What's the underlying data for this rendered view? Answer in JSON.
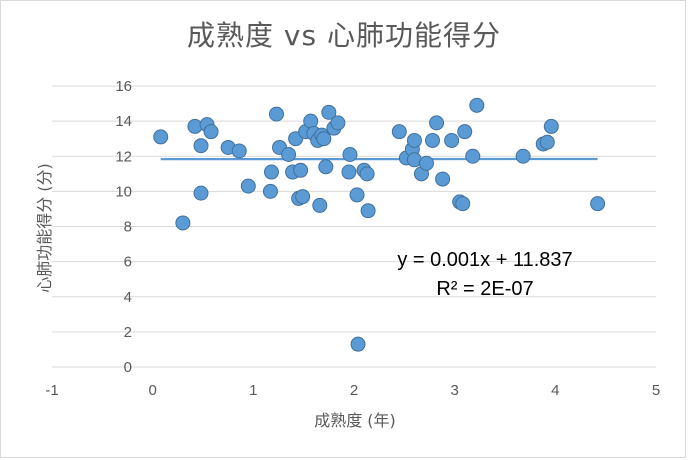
{
  "chart_data": {
    "type": "scatter",
    "title": "成熟度 vs 心肺功能得分",
    "xlabel": "成熟度 (年)",
    "ylabel": "心肺功能得分 (分)",
    "xlim": [
      -1,
      5
    ],
    "ylim": [
      0,
      16
    ],
    "xticks": [
      -1,
      0,
      1,
      2,
      3,
      4,
      5
    ],
    "yticks": [
      0,
      2,
      4,
      6,
      8,
      10,
      12,
      14,
      16
    ],
    "xtick_labels": [
      "-1",
      "0",
      "1",
      "2",
      "3",
      "4",
      "5"
    ],
    "ytick_labels": [
      "0",
      "2",
      "4",
      "6",
      "8",
      "10",
      "12",
      "14",
      "16"
    ],
    "grid": "horizontal",
    "colors": {
      "marker": "#5b9bd5",
      "marker_edge": "#41719c",
      "trendline": "#5b9bd5",
      "grid": "#d9d9d9"
    },
    "series": [
      {
        "x": [
          0.08,
          0.3,
          0.42,
          0.48,
          0.48,
          0.54,
          0.58,
          0.75,
          0.86,
          0.95,
          1.17,
          1.18,
          1.23,
          1.26,
          1.35,
          1.39,
          1.42,
          1.45,
          1.47,
          1.49,
          1.52,
          1.57,
          1.6,
          1.64,
          1.66,
          1.68,
          1.7,
          1.72,
          1.75,
          1.8,
          1.84,
          1.95,
          1.96,
          2.03,
          2.04,
          2.1,
          2.13,
          2.14,
          2.45,
          2.52,
          2.58,
          2.6,
          2.6,
          2.67,
          2.72,
          2.78,
          2.82,
          2.88,
          2.97,
          3.05,
          3.08,
          3.1,
          3.18,
          3.22,
          3.68,
          3.88,
          3.92,
          3.96,
          4.42
        ],
        "y": [
          13.1,
          8.2,
          13.7,
          9.9,
          12.6,
          13.8,
          13.4,
          12.5,
          12.3,
          10.3,
          10.0,
          11.1,
          14.4,
          12.5,
          12.1,
          11.1,
          13.0,
          9.6,
          11.2,
          9.7,
          13.4,
          14.0,
          13.3,
          12.9,
          9.2,
          13.2,
          13.0,
          11.4,
          14.5,
          13.6,
          13.9,
          11.1,
          12.1,
          9.8,
          1.3,
          11.2,
          11.0,
          8.9,
          13.4,
          11.9,
          12.4,
          12.9,
          11.8,
          11.0,
          11.6,
          12.9,
          13.9,
          10.7,
          12.9,
          9.4,
          9.3,
          13.4,
          12.0,
          14.9,
          12.0,
          12.7,
          12.8,
          13.7,
          9.3
        ]
      }
    ],
    "trendline": {
      "type": "linear",
      "slope": 0.001,
      "intercept": 11.837,
      "x_range": [
        0.08,
        4.42
      ],
      "equation_label": "y = 0.001x + 11.837",
      "r2_label": "R² = 2E-07"
    }
  }
}
